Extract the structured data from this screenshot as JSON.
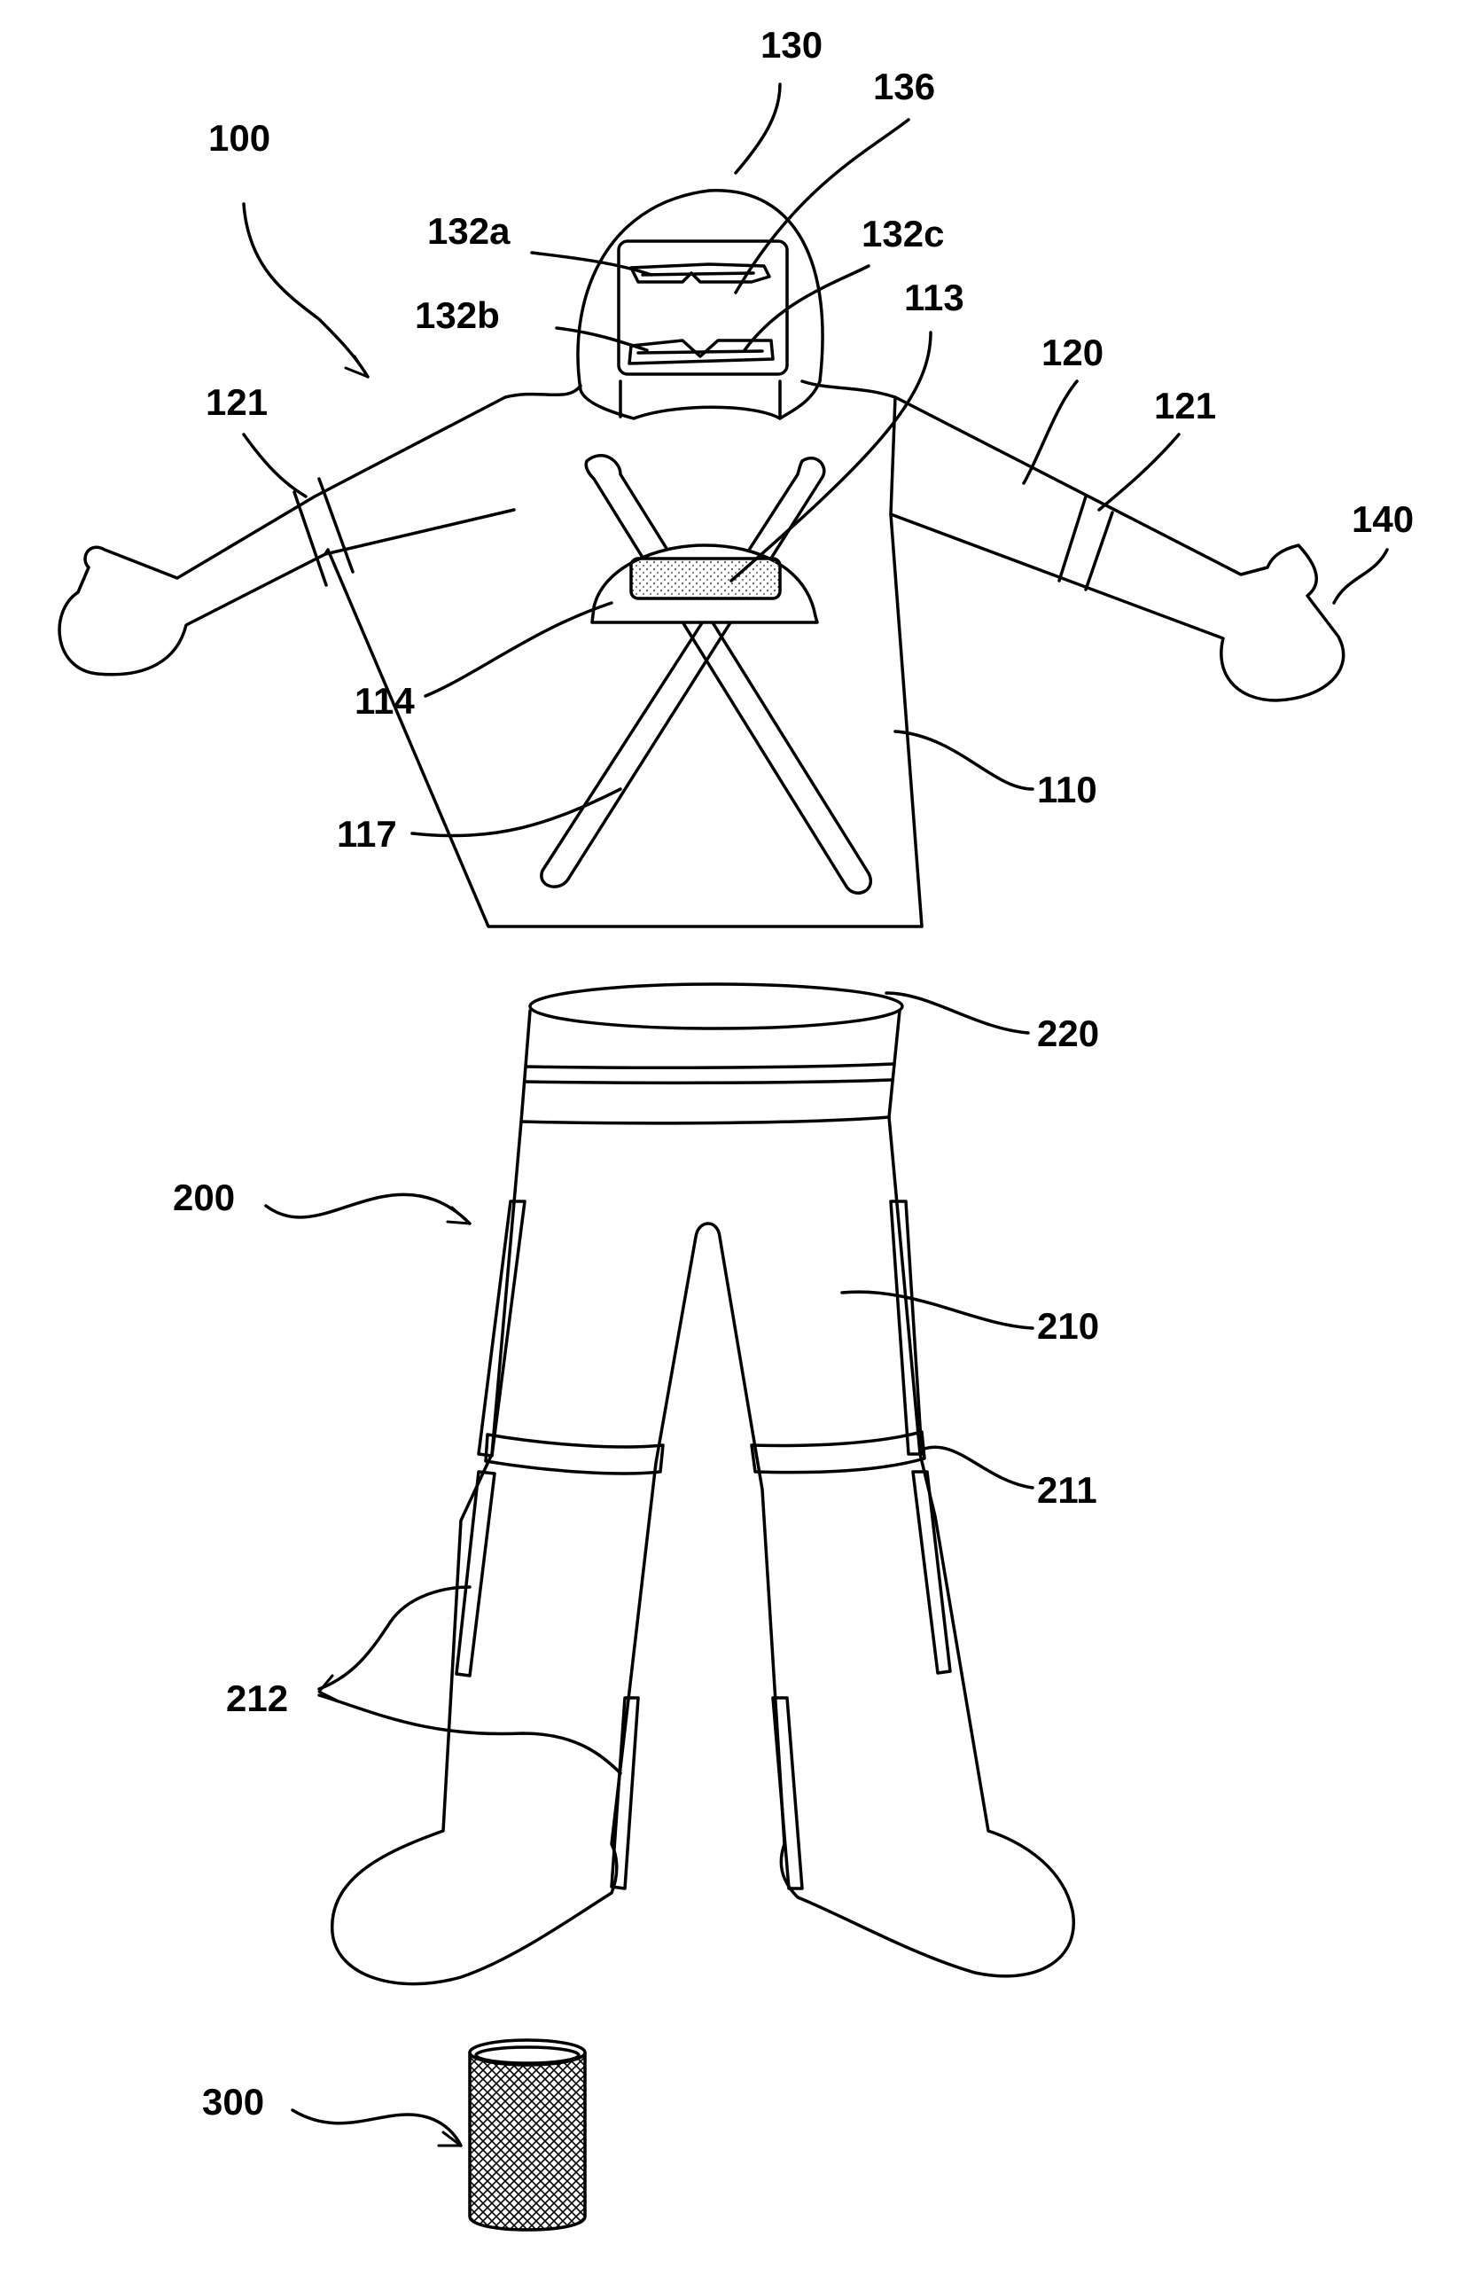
{
  "labels": {
    "l100": "100",
    "l110": "110",
    "l113": "113",
    "l114": "114",
    "l117": "117",
    "l120": "120",
    "l121_left": "121",
    "l121_right": "121",
    "l130": "130",
    "l132a": "132a",
    "l132b": "132b",
    "l132c": "132c",
    "l136": "136",
    "l140": "140",
    "l200": "200",
    "l210": "210",
    "l211": "211",
    "l212": "212",
    "l220": "220",
    "l300": "300"
  },
  "colors": {
    "line": "#000000",
    "fill": "#ffffff"
  }
}
